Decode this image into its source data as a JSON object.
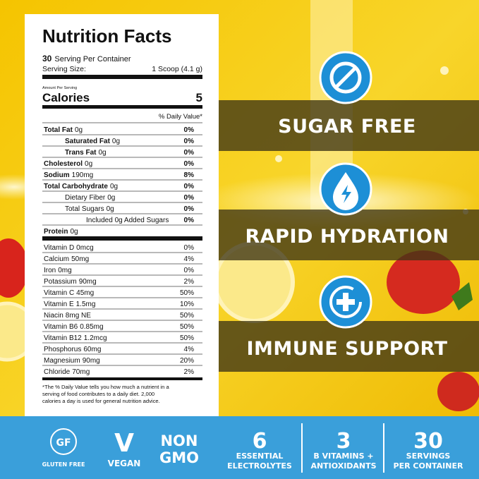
{
  "nutrition": {
    "title": "Nutrition Facts",
    "servings_count": 30,
    "servings_text": "Serving Per Container",
    "serving_size_label": "Serving Size:",
    "serving_size": "1 Scoop (4.1 g)",
    "amount_per_serving": "Amount Per Serving",
    "calories_label": "Calories",
    "calories": 5,
    "dv_header": "% Daily Value*",
    "macros": [
      {
        "name": "Total Fat",
        "amount": "0g",
        "dv": "0%"
      },
      {
        "name": "Saturated Fat",
        "amount": "0g",
        "dv": "0%"
      },
      {
        "name": "Trans Fat",
        "amount": "0g",
        "dv": "0%"
      },
      {
        "name": "Cholesterol",
        "amount": "0g",
        "dv": "0%"
      },
      {
        "name": "Sodium",
        "amount": "190mg",
        "dv": "8%"
      },
      {
        "name": "Total Carbohydrate",
        "amount": "0g",
        "dv": "0%"
      },
      {
        "name": "Dietary Fiber",
        "amount": "0g",
        "dv": "0%"
      },
      {
        "name": "Total Sugars",
        "amount": "0g",
        "dv": "0%"
      },
      {
        "name": "Included 0g Added Sugars",
        "dv": "0%"
      },
      {
        "name": "Protein",
        "amount": "0g"
      }
    ],
    "micros": [
      {
        "name": "Vitamin D",
        "amount": "0mcg",
        "dv": "0%"
      },
      {
        "name": "Calcium",
        "amount": "50mg",
        "dv": "4%"
      },
      {
        "name": "Iron",
        "amount": "0mg",
        "dv": "0%"
      },
      {
        "name": "Potassium",
        "amount": "90mg",
        "dv": "2%"
      },
      {
        "name": "Vitamin C",
        "amount": "45mg",
        "dv": "50%"
      },
      {
        "name": "Vitamin E",
        "amount": "1.5mg",
        "dv": "10%"
      },
      {
        "name": "Niacin",
        "amount": "8mg NE",
        "dv": "50%"
      },
      {
        "name": "Vitamin B6",
        "amount": "0.85mg",
        "dv": "50%"
      },
      {
        "name": "Vitamin B12",
        "amount": "1.2mcg",
        "dv": "50%"
      },
      {
        "name": "Phosphorus",
        "amount": "60mg",
        "dv": "4%"
      },
      {
        "name": "Magnesium",
        "amount": "90mg",
        "dv": "20%"
      },
      {
        "name": "Chloride",
        "amount": "70mg",
        "dv": "2%"
      }
    ],
    "footnote": [
      "*The % Daily Value tells you how much a nutrient in a",
      "serving of food contributes to a daily diet. 2,000",
      "calories a day is used for general nutrition advice."
    ]
  },
  "features": [
    "SUGAR FREE",
    "RAPID HYDRATION",
    "IMMUNE SUPPORT"
  ],
  "bottom_bar": {
    "gluten_free": {
      "icon": "GF",
      "label": "GLUTEN FREE"
    },
    "vegan": {
      "icon": "V",
      "label": "VEGAN"
    },
    "non_gmo": [
      "NON",
      "GMO"
    ],
    "stats": [
      {
        "number": 6,
        "lines": [
          "ESSENTIAL",
          "ELECTROLYTES"
        ]
      },
      {
        "number": 3,
        "lines": [
          "B VITAMINS +",
          "ANTIOXIDANTS"
        ]
      },
      {
        "number": 30,
        "lines": [
          "SERVINGS",
          "PER CONTAINER"
        ]
      }
    ]
  }
}
